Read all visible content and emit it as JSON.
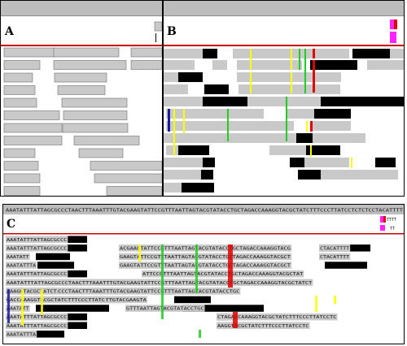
{
  "colors": {
    "read_fill": "#c9c9c9",
    "read_border": "#6e6e6e",
    "clip": "#000000",
    "ref_line": "#c80000",
    "ruler": "#bdbdbd",
    "mismatch_yellow": "#ffff00",
    "mismatch_green": "#22cc22",
    "mismatch_red": "#e00000",
    "mismatch_blue": "#1a1aa0",
    "insert_magenta": "#ff22ff"
  },
  "panels": {
    "a": {
      "label": "A"
    },
    "b": {
      "label": "B"
    },
    "c": {
      "label": "C",
      "reference": "AAATATTTATTAGCGCCCTAACTTTAAATTTGTACGAAGTATTCCGTTTAATTAGTACGTATACCTGCTAGACCAAAGGTACGCTATCTTTCCCTTATCCTCTCTCCTACATTTT",
      "legend": {
        "line1": "TTTT",
        "line2": "TT"
      },
      "reads": [
        {
          "segments": [
            {
              "text": "AAATATTTATTAGCGCCC"
            }
          ]
        },
        {
          "segments": [
            {
              "text": "AAATATTTATTAGCGCCC"
            },
            {
              "text": "ACGAAGTATTCCGTTTAATTAGTACGTATACCTGCTAGACCAAAGGTACG"
            },
            {
              "text": "CTACATTTT"
            }
          ]
        },
        {
          "segments": [
            {
              "text": "AAATATT"
            },
            {
              "text": "GAAGTATTCCGTTTAATTAGTACGTATACCTGCTAGACCAAAGGTACGCT"
            },
            {
              "text": "CTACATTTT"
            }
          ]
        },
        {
          "segments": [
            {
              "text": "AAATATTTA"
            },
            {
              "text": "GAAGTATTCCGTTTAATTAGTACGTATACCTGCTAGACCAAAGGTACGCT"
            }
          ]
        },
        {
          "segments": [
            {
              "text": "AAATATTTATTAGCGCCC"
            },
            {
              "text": "ATTCCGTTTAATTAGTACGTATACCTGCTAGACCAAAGGTACGCTAT"
            }
          ]
        },
        {
          "segments": [
            {
              "text": "AAATATTTATTAGCGCCCTAACTTTAAATTTGTACGAAGTATTCCGTTTAATTAGTACGTATACCTGCTAGACCAAAGGTACGCTATCT"
            }
          ]
        },
        {
          "segments": [
            {
              "text": "AAATATTTATTAGCGCCCTAACTTTAAATTTGTACGAAGTATTCCGTTTAATTAGTACGTATACCTGC"
            },
            {
              "text": "AAAGGTACGCTATCT"
            }
          ]
        },
        {
          "segments": [
            {
              "text": "AAATATTTATTAGCGCCCTAACTTTAAATTTGTACGAAGTA"
            },
            {
              "text": "GACCAAAGGTACGCTATCTTTCCCTTATC"
            }
          ]
        },
        {
          "segments": [
            {
              "text": "AAATATT"
            },
            {
              "text": "GTTTAATTAGTACGTATACCTGC"
            }
          ]
        },
        {
          "segments": [
            {
              "text": "AAATATTTATTAGCGCCC"
            },
            {
              "text": "CTAGACCAAAGGTACGCTATCTTTCCCTTATCCTC"
            }
          ]
        },
        {
          "segments": [
            {
              "text": "AAATATTTATTAGCGCCC"
            },
            {
              "text": "AAGGTACGCTATCTTTCCCTTATCCTC"
            }
          ]
        },
        {
          "segments": [
            {
              "text": "AAATATTTA"
            }
          ]
        }
      ]
    }
  }
}
